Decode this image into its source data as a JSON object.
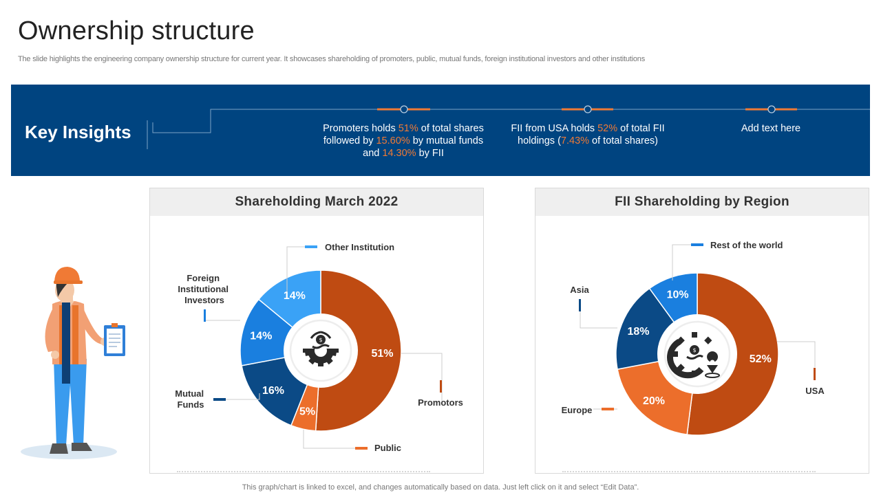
{
  "page": {
    "title": "Ownership structure",
    "subtitle": "The slide highlights the engineering company ownership structure for current year.  It showcases shareholding of promoters, public, mutual funds, foreign institutional investors and other institutions",
    "footnote": "This graph/chart is linked to excel,  and changes automatically based on data. Just left click on it and select “Edit Data”."
  },
  "insights": {
    "label": "Key Insights",
    "items": [
      {
        "parts": [
          {
            "t": "Promoters holds ",
            "h": false
          },
          {
            "t": "51%",
            "h": true
          },
          {
            "t": " of total shares followed by ",
            "h": false
          },
          {
            "t": "15.60%",
            "h": true
          },
          {
            "t": " by mutual funds and ",
            "h": false
          },
          {
            "t": "14.30%",
            "h": true
          },
          {
            "t": " by FII",
            "h": false
          }
        ]
      },
      {
        "parts": [
          {
            "t": "FII from USA holds ",
            "h": false
          },
          {
            "t": "52%",
            "h": true
          },
          {
            "t": " of total FII holdings (",
            "h": false
          },
          {
            "t": "7.43%",
            "h": true
          },
          {
            "t": " of total shares)",
            "h": false
          }
        ]
      },
      {
        "parts": [
          {
            "t": "Add text here",
            "h": false
          }
        ]
      }
    ]
  },
  "colors": {
    "banner": "#004480",
    "highlight": "#f07a35",
    "dark_orange": "#bf4b12",
    "orange": "#ec6e2b",
    "navy": "#0b4a86",
    "blue": "#1a7fdf",
    "light_blue": "#3aa2f6"
  },
  "chart_data": [
    {
      "type": "pie",
      "variant": "donut",
      "title": "Shareholding March 2022",
      "categories": [
        "Promotors",
        "Public",
        "Mutual Funds",
        "Foreign Institutional Investors",
        "Other Institution"
      ],
      "values": [
        51,
        5,
        16,
        14,
        14
      ],
      "value_labels": [
        "51%",
        "5%",
        "16%",
        "14%",
        "14%"
      ],
      "colors": [
        "#bf4b12",
        "#ec6e2b",
        "#0b4a86",
        "#1a7fdf",
        "#3aa2f6"
      ],
      "center_icon": "money-gear-icon"
    },
    {
      "type": "pie",
      "variant": "donut",
      "title": "FII Shareholding by Region",
      "categories": [
        "USA",
        "Europe",
        "Asia",
        "Rest of the world"
      ],
      "values": [
        52,
        20,
        18,
        10
      ],
      "value_labels": [
        "52%",
        "20%",
        "18%",
        "10%"
      ],
      "colors": [
        "#bf4b12",
        "#ec6e2b",
        "#0b4a86",
        "#1a7fdf"
      ],
      "center_icon": "money-gear-location-icon"
    }
  ]
}
